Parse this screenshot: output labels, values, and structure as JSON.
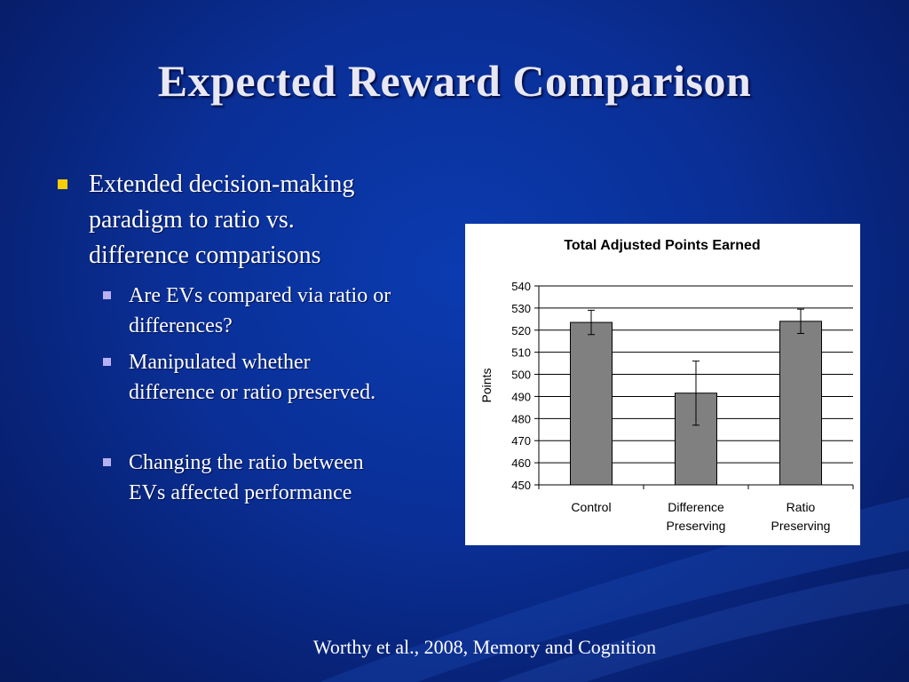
{
  "slide": {
    "title": "Expected Reward Comparison",
    "bullet": {
      "text_lines": [
        "Extended decision-making",
        "paradigm to ratio vs.",
        "difference comparisons"
      ],
      "sub_bullets": [
        {
          "lines": [
            "Are EVs compared via ratio or",
            "differences?"
          ]
        },
        {
          "lines": [
            "Manipulated whether",
            "difference or ratio preserved."
          ]
        },
        {
          "lines": [
            "Changing the ratio between",
            "EVs affected performance"
          ]
        }
      ]
    },
    "citation": "Worthy et al., 2008, Memory and Cognition"
  },
  "colors": {
    "background": "#0a2f96",
    "title_text": "#e8e8f4",
    "bullet_marker": "#f5d000",
    "sub_bullet_marker": "#b8b0f0",
    "bar_fill": "#808080"
  },
  "chart_data": {
    "type": "bar",
    "title": "Total Adjusted Points Earned",
    "xlabel": "",
    "ylabel": "Points",
    "categories": [
      [
        "Control"
      ],
      [
        "Difference",
        "Preserving"
      ],
      [
        "Ratio",
        "Preserving"
      ]
    ],
    "values": [
      523.5,
      491.5,
      524
    ],
    "error": [
      5.5,
      14.5,
      5.5
    ],
    "ylim": [
      450,
      540
    ],
    "yticks": [
      540,
      530,
      520,
      510,
      500,
      490,
      480,
      470,
      460,
      450
    ],
    "grid": true,
    "legend": "none"
  }
}
